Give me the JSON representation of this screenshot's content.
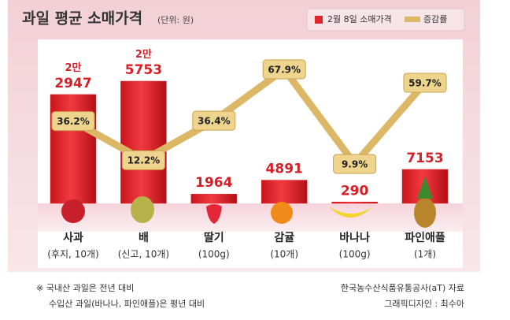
{
  "chart_data": {
    "type": "combo",
    "title": "과일 평균 소매가격",
    "unit": "(단위: 원)",
    "categories": [
      "사과",
      "배",
      "딸기",
      "감귤",
      "바나나",
      "파인애플"
    ],
    "category_notes": [
      "(후지, 10개)",
      "(신고, 10개)",
      "(100g)",
      "(10개)",
      "(100g)",
      "(1개)"
    ],
    "series": [
      {
        "name": "2월 8일 소매가격",
        "type": "bar",
        "color": "#e3262d",
        "values": [
          22947,
          25753,
          1964,
          4891,
          290,
          7153
        ],
        "value_labels": [
          "2만\n2947",
          "2만\n5753",
          "1964",
          "4891",
          "290",
          "7153"
        ]
      },
      {
        "name": "증감률",
        "type": "line",
        "color": "#dcb866",
        "values": [
          36.2,
          12.2,
          36.4,
          67.9,
          9.9,
          59.7
        ],
        "value_labels": [
          "36.2%",
          "12.2%",
          "36.4%",
          "67.9%",
          "9.9%",
          "59.7%"
        ]
      }
    ],
    "footnotes": [
      "※ 국내산 과일은 전년 대비",
      "수입산 과일(바나나, 파인애플)은 평년 대비"
    ],
    "source": [
      "한국농수산식품유통공사(aT) 자료",
      "그래픽디자인 : 최수아"
    ]
  }
}
